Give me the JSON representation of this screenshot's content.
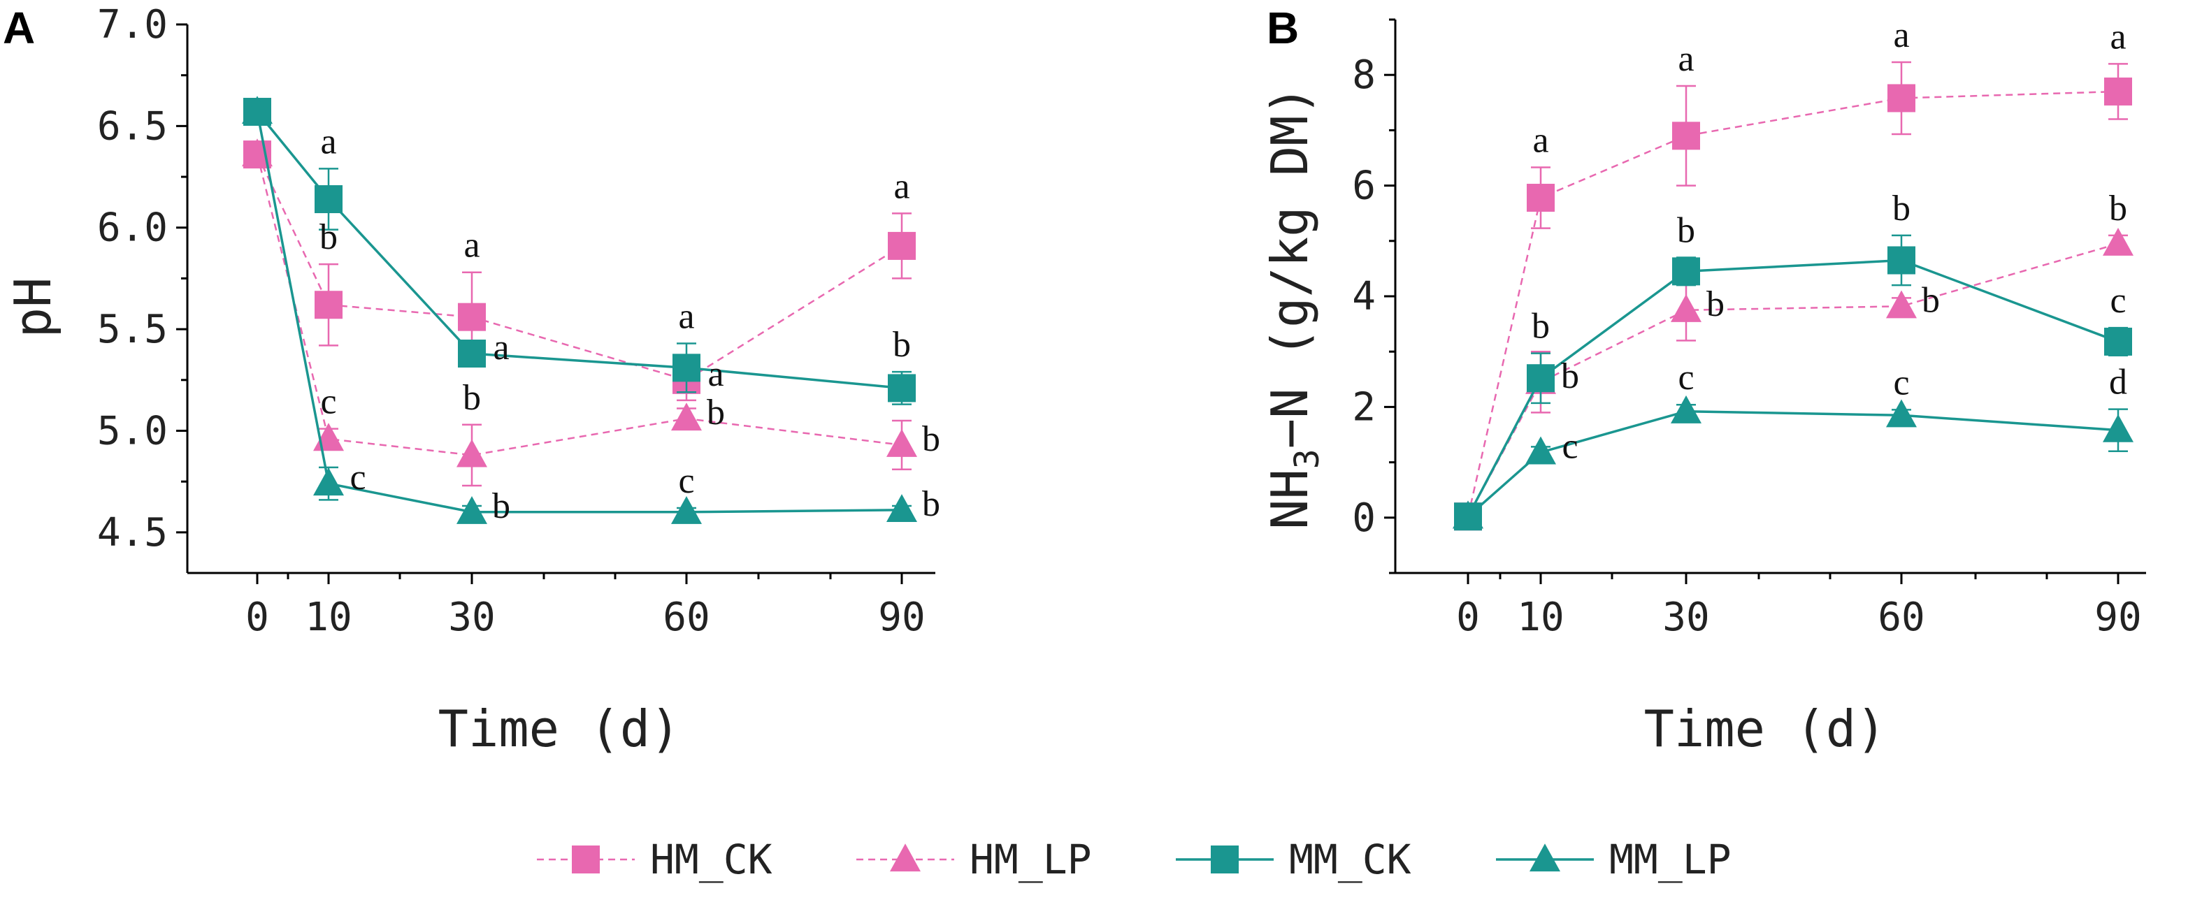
{
  "colors": {
    "HM": "#e868b0",
    "MM": "#1a9690"
  },
  "legend": [
    {
      "key": "HM_CK",
      "label": "HM_CK",
      "color": "#e868b0",
      "marker": "square",
      "dash": true
    },
    {
      "key": "HM_LP",
      "label": "HM_LP",
      "color": "#e868b0",
      "marker": "triangle",
      "dash": true
    },
    {
      "key": "MM_CK",
      "label": "MM_CK",
      "color": "#1a9690",
      "marker": "square",
      "dash": false
    },
    {
      "key": "MM_LP",
      "label": "MM_LP",
      "color": "#1a9690",
      "marker": "triangle",
      "dash": false
    }
  ],
  "chart_data": [
    {
      "panel": "A",
      "type": "line",
      "xlabel": "Time (d)",
      "ylabel": "pH",
      "ylim": [
        4.3,
        7.0
      ],
      "x": [
        0,
        10,
        30,
        60,
        90
      ],
      "xticks": [
        "0",
        "10",
        "30",
        "60",
        "90"
      ],
      "yticks": [
        "4.5",
        "5.0",
        "5.5",
        "6.0",
        "6.5",
        "7.0"
      ],
      "series": [
        {
          "name": "HM_CK",
          "values": [
            6.36,
            5.62,
            5.56,
            5.25,
            5.91
          ],
          "errors": [
            0.0,
            0.2,
            0.22,
            0.1,
            0.16
          ],
          "labels": [
            "",
            "b",
            "a",
            "a",
            "a"
          ]
        },
        {
          "name": "HM_LP",
          "values": [
            6.36,
            4.96,
            4.88,
            5.06,
            4.93
          ],
          "errors": [
            0.0,
            0.05,
            0.15,
            0.05,
            0.12
          ],
          "labels": [
            "",
            "c",
            "b",
            "b",
            "b"
          ]
        },
        {
          "name": "MM_CK",
          "values": [
            6.57,
            6.14,
            5.38,
            5.31,
            5.21
          ],
          "errors": [
            0.0,
            0.15,
            0.05,
            0.12,
            0.08
          ],
          "labels": [
            "",
            "a",
            "a",
            "a",
            "b"
          ]
        },
        {
          "name": "MM_LP",
          "values": [
            6.57,
            4.74,
            4.6,
            4.6,
            4.61
          ],
          "errors": [
            0.0,
            0.08,
            0.03,
            0.02,
            0.02
          ],
          "labels": [
            "",
            "c",
            "b",
            "c",
            "b"
          ]
        }
      ]
    },
    {
      "panel": "B",
      "type": "line",
      "xlabel": "Time (d)",
      "ylabel": "NH3-N (g/kg DM)",
      "ylabel_parts": {
        "pre": "NH",
        "sub": "3",
        "post": "−N (g/kg DM)"
      },
      "ylim": [
        -1,
        9
      ],
      "x": [
        0,
        10,
        30,
        60,
        90
      ],
      "xticks": [
        "0",
        "10",
        "30",
        "60",
        "90"
      ],
      "yticks": [
        "0",
        "2",
        "4",
        "6",
        "8"
      ],
      "series": [
        {
          "name": "HM_CK",
          "values": [
            0.02,
            5.78,
            6.9,
            7.58,
            7.7
          ],
          "errors": [
            0.0,
            0.55,
            0.9,
            0.65,
            0.5
          ],
          "labels": [
            "",
            "a",
            "a",
            "a",
            "a"
          ]
        },
        {
          "name": "HM_LP",
          "values": [
            0.02,
            2.45,
            3.75,
            3.82,
            4.95
          ],
          "errors": [
            0.0,
            0.55,
            0.55,
            0.15,
            0.15
          ],
          "labels": [
            "",
            "b",
            "b",
            "b",
            "b"
          ]
        },
        {
          "name": "MM_CK",
          "values": [
            0.02,
            2.52,
            4.45,
            4.65,
            3.18
          ],
          "errors": [
            0.0,
            0.45,
            0.25,
            0.45,
            0.25
          ],
          "labels": [
            "",
            "b",
            "b",
            "b",
            "c"
          ]
        },
        {
          "name": "MM_LP",
          "values": [
            0.02,
            1.18,
            1.92,
            1.85,
            1.58
          ],
          "errors": [
            0.0,
            0.1,
            0.12,
            0.1,
            0.38
          ],
          "labels": [
            "",
            "c",
            "c",
            "c",
            "d"
          ]
        }
      ]
    }
  ]
}
